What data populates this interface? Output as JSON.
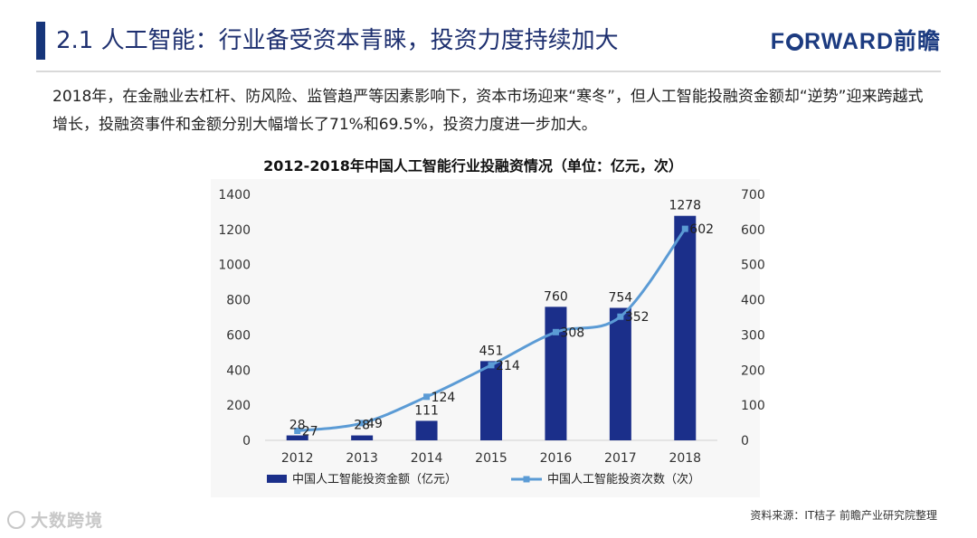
{
  "header": {
    "title": "2.1 人工智能：行业备受资本青睐，投资力度持续加大",
    "brand_pre": "F",
    "brand_post": "RWARD前瞻"
  },
  "intro_text": "2018年，在金融业去杠杆、防风险、监管趋严等因素影响下，资本市场迎来“寒冬”，但人工智能投融资金额却“逆势”迎来跨越式增长，投融资事件和金额分别大幅增长了71%和69.5%，投资力度进一步加大。",
  "footer": {
    "source": "资料来源：IT桔子 前瞻产业研究院整理",
    "watermark": "大数跨境"
  },
  "colors": {
    "bar": "#1b2f8a",
    "line": "#5b9bd5",
    "brand": "#1c3b80"
  },
  "chart_data": {
    "type": "bar+line",
    "title": "2012-2018年中国人工智能行业投融资情况（单位：亿元，次）",
    "categories": [
      "2012",
      "2013",
      "2014",
      "2015",
      "2016",
      "2017",
      "2018"
    ],
    "series": [
      {
        "name": "中国人工智能投资金额（亿元）",
        "type": "bar",
        "axis": "left",
        "values": [
          28,
          28,
          111,
          451,
          760,
          754,
          1278
        ]
      },
      {
        "name": "中国人工智能投资次数（次）",
        "type": "line",
        "axis": "right",
        "values": [
          27,
          49,
          124,
          214,
          308,
          352,
          602
        ]
      }
    ],
    "y_left": {
      "min": 0,
      "max": 1400,
      "ticks": [
        0,
        200,
        400,
        600,
        800,
        1000,
        1200,
        1400
      ]
    },
    "y_right": {
      "min": 0,
      "max": 700,
      "ticks": [
        0,
        100,
        200,
        300,
        400,
        500,
        600,
        700
      ]
    },
    "legend_position": "bottom",
    "grid": false
  }
}
